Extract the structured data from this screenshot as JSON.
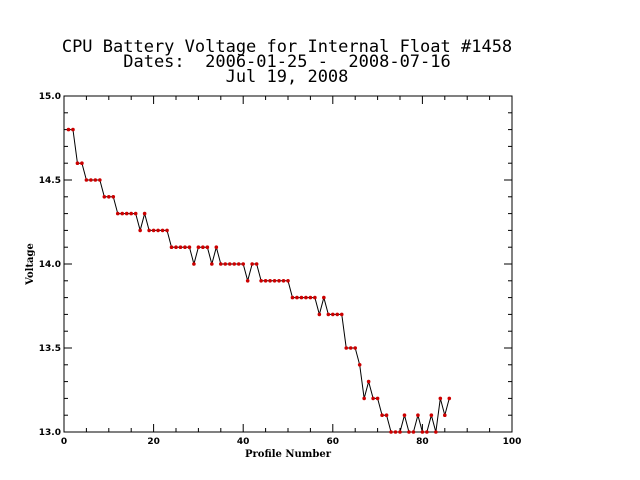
{
  "chart_data": {
    "type": "line",
    "title": "CPU Battery Voltage for Internal Float #1458",
    "subtitle_lines": [
      "Dates:  2006-01-25 -  2008-07-16",
      "Jul 19, 2008"
    ],
    "xlabel": "Profile Number",
    "ylabel": "Voltage",
    "xlim": [
      0,
      100
    ],
    "ylim": [
      13.0,
      15.0
    ],
    "x_ticks": [
      0,
      20,
      40,
      60,
      80,
      100
    ],
    "x_tick_labels": [
      "0",
      "20",
      "40",
      "60",
      "80",
      "100"
    ],
    "y_ticks": [
      13.0,
      13.5,
      14.0,
      14.5,
      15.0
    ],
    "y_tick_labels": [
      "13.0",
      "13.5",
      "14.0",
      "14.5",
      "15.0"
    ],
    "grid": false,
    "line_color": "#000000",
    "marker_color": "#cc0000",
    "series": [
      {
        "x": [
          1,
          2,
          3,
          4,
          5,
          6,
          7,
          8,
          9,
          10,
          11,
          12,
          13,
          14,
          15,
          16,
          17,
          18,
          19,
          20,
          21,
          22,
          23,
          24,
          25,
          26,
          27,
          28,
          29,
          30,
          31,
          32,
          33,
          34,
          35,
          36,
          37,
          38,
          39,
          40,
          41,
          42,
          43,
          44,
          45,
          46,
          47,
          48,
          49,
          50,
          51,
          52,
          53,
          54,
          55,
          56,
          57,
          58,
          59,
          60,
          61,
          62,
          63,
          64,
          65,
          66,
          67,
          68,
          69,
          70,
          71,
          72,
          73,
          74,
          75,
          76,
          77,
          78,
          79,
          80,
          81,
          82,
          83,
          84,
          85,
          86
        ],
        "y": [
          14.8,
          14.8,
          14.6,
          14.6,
          14.5,
          14.5,
          14.5,
          14.5,
          14.4,
          14.4,
          14.4,
          14.3,
          14.3,
          14.3,
          14.3,
          14.3,
          14.2,
          14.3,
          14.2,
          14.2,
          14.2,
          14.2,
          14.2,
          14.1,
          14.1,
          14.1,
          14.1,
          14.1,
          14.0,
          14.1,
          14.1,
          14.1,
          14.0,
          14.1,
          14.0,
          14.0,
          14.0,
          14.0,
          14.0,
          14.0,
          13.9,
          14.0,
          14.0,
          13.9,
          13.9,
          13.9,
          13.9,
          13.9,
          13.9,
          13.9,
          13.8,
          13.8,
          13.8,
          13.8,
          13.8,
          13.8,
          13.7,
          13.8,
          13.7,
          13.7,
          13.7,
          13.7,
          13.5,
          13.5,
          13.5,
          13.4,
          13.2,
          13.3,
          13.2,
          13.2,
          13.1,
          13.1,
          13.0,
          13.0,
          13.0,
          13.1,
          13.0,
          13.0,
          13.1,
          13.0,
          13.0,
          13.1,
          13.0,
          13.2,
          13.1,
          13.2
        ]
      }
    ]
  }
}
